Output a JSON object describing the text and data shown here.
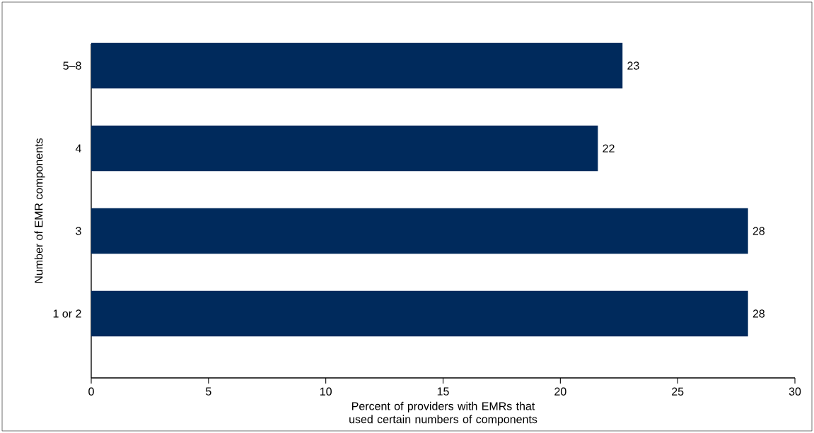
{
  "chart_data": {
    "type": "bar",
    "orientation": "horizontal",
    "categories": [
      "5–8",
      "4",
      "3",
      "1 or 2"
    ],
    "values": [
      22.65,
      21.6,
      28,
      28
    ],
    "value_labels": [
      "23",
      "22",
      "28",
      "28"
    ],
    "color": "#002a5c",
    "xlabel": "Percent of providers with EMRs that used certain numbers of components",
    "ylabel": "Number of EMR components",
    "xlim": [
      0,
      30
    ],
    "xticks": [
      0,
      5,
      10,
      15,
      20,
      25,
      30
    ],
    "grid": false
  }
}
